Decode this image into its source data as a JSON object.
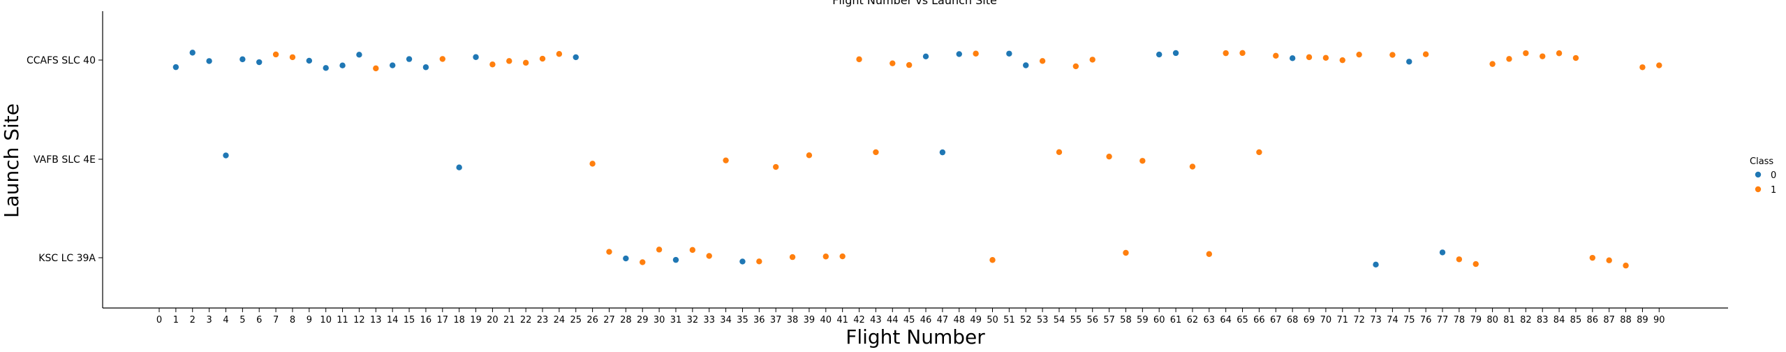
{
  "chart_data": {
    "type": "scatter",
    "title": "Flight Number vs Launch Site",
    "xlabel": "Flight Number",
    "ylabel": "Launch Site",
    "x_categories": [
      "0",
      "1",
      "2",
      "3",
      "4",
      "5",
      "6",
      "7",
      "8",
      "9",
      "10",
      "11",
      "12",
      "13",
      "14",
      "15",
      "16",
      "17",
      "18",
      "19",
      "20",
      "21",
      "22",
      "23",
      "24",
      "25",
      "26",
      "27",
      "28",
      "29",
      "30",
      "31",
      "32",
      "33",
      "34",
      "35",
      "36",
      "37",
      "38",
      "39",
      "40",
      "41",
      "42",
      "43",
      "44",
      "45",
      "46",
      "47",
      "48",
      "49",
      "50",
      "51",
      "52",
      "53",
      "54",
      "55",
      "56",
      "57",
      "58",
      "59",
      "60",
      "61",
      "62",
      "63",
      "64",
      "65",
      "66",
      "67",
      "68",
      "69",
      "70",
      "71",
      "72",
      "73",
      "74",
      "75",
      "76",
      "77",
      "78",
      "79",
      "80",
      "81",
      "82",
      "83",
      "84",
      "85",
      "86",
      "87",
      "88",
      "89",
      "90"
    ],
    "y_categories": [
      "CCAFS SLC 40",
      "VAFB SLC 4E",
      "KSC LC 39A"
    ],
    "grid": false,
    "legend": {
      "title": "Class",
      "placement": "right",
      "entries": [
        {
          "label": "0",
          "color": "#1f77b4"
        },
        {
          "label": "1",
          "color": "#ff7f0e"
        }
      ]
    },
    "points": [
      {
        "x": 1,
        "site": "CCAFS SLC 40",
        "class": 0
      },
      {
        "x": 2,
        "site": "CCAFS SLC 40",
        "class": 0
      },
      {
        "x": 3,
        "site": "CCAFS SLC 40",
        "class": 0
      },
      {
        "x": 4,
        "site": "VAFB SLC 4E",
        "class": 0
      },
      {
        "x": 5,
        "site": "CCAFS SLC 40",
        "class": 0
      },
      {
        "x": 6,
        "site": "CCAFS SLC 40",
        "class": 0
      },
      {
        "x": 7,
        "site": "CCAFS SLC 40",
        "class": 1
      },
      {
        "x": 8,
        "site": "CCAFS SLC 40",
        "class": 1
      },
      {
        "x": 9,
        "site": "CCAFS SLC 40",
        "class": 0
      },
      {
        "x": 10,
        "site": "CCAFS SLC 40",
        "class": 0
      },
      {
        "x": 11,
        "site": "CCAFS SLC 40",
        "class": 0
      },
      {
        "x": 12,
        "site": "CCAFS SLC 40",
        "class": 0
      },
      {
        "x": 13,
        "site": "CCAFS SLC 40",
        "class": 1
      },
      {
        "x": 14,
        "site": "CCAFS SLC 40",
        "class": 0
      },
      {
        "x": 15,
        "site": "CCAFS SLC 40",
        "class": 0
      },
      {
        "x": 16,
        "site": "CCAFS SLC 40",
        "class": 0
      },
      {
        "x": 17,
        "site": "CCAFS SLC 40",
        "class": 1
      },
      {
        "x": 18,
        "site": "VAFB SLC 4E",
        "class": 0
      },
      {
        "x": 19,
        "site": "CCAFS SLC 40",
        "class": 0
      },
      {
        "x": 20,
        "site": "CCAFS SLC 40",
        "class": 1
      },
      {
        "x": 21,
        "site": "CCAFS SLC 40",
        "class": 1
      },
      {
        "x": 22,
        "site": "CCAFS SLC 40",
        "class": 1
      },
      {
        "x": 23,
        "site": "CCAFS SLC 40",
        "class": 1
      },
      {
        "x": 24,
        "site": "CCAFS SLC 40",
        "class": 1
      },
      {
        "x": 25,
        "site": "CCAFS SLC 40",
        "class": 0
      },
      {
        "x": 26,
        "site": "VAFB SLC 4E",
        "class": 1
      },
      {
        "x": 27,
        "site": "KSC LC 39A",
        "class": 1
      },
      {
        "x": 28,
        "site": "KSC LC 39A",
        "class": 0
      },
      {
        "x": 29,
        "site": "KSC LC 39A",
        "class": 1
      },
      {
        "x": 30,
        "site": "KSC LC 39A",
        "class": 1
      },
      {
        "x": 31,
        "site": "KSC LC 39A",
        "class": 0
      },
      {
        "x": 32,
        "site": "KSC LC 39A",
        "class": 1
      },
      {
        "x": 33,
        "site": "KSC LC 39A",
        "class": 1
      },
      {
        "x": 34,
        "site": "VAFB SLC 4E",
        "class": 1
      },
      {
        "x": 35,
        "site": "KSC LC 39A",
        "class": 0
      },
      {
        "x": 36,
        "site": "KSC LC 39A",
        "class": 1
      },
      {
        "x": 37,
        "site": "VAFB SLC 4E",
        "class": 1
      },
      {
        "x": 38,
        "site": "KSC LC 39A",
        "class": 1
      },
      {
        "x": 39,
        "site": "VAFB SLC 4E",
        "class": 1
      },
      {
        "x": 40,
        "site": "KSC LC 39A",
        "class": 1
      },
      {
        "x": 41,
        "site": "KSC LC 39A",
        "class": 1
      },
      {
        "x": 42,
        "site": "CCAFS SLC 40",
        "class": 1
      },
      {
        "x": 43,
        "site": "VAFB SLC 4E",
        "class": 1
      },
      {
        "x": 44,
        "site": "CCAFS SLC 40",
        "class": 1
      },
      {
        "x": 45,
        "site": "CCAFS SLC 40",
        "class": 1
      },
      {
        "x": 46,
        "site": "CCAFS SLC 40",
        "class": 0
      },
      {
        "x": 47,
        "site": "VAFB SLC 4E",
        "class": 0
      },
      {
        "x": 48,
        "site": "CCAFS SLC 40",
        "class": 0
      },
      {
        "x": 49,
        "site": "CCAFS SLC 40",
        "class": 1
      },
      {
        "x": 50,
        "site": "KSC LC 39A",
        "class": 1
      },
      {
        "x": 51,
        "site": "CCAFS SLC 40",
        "class": 0
      },
      {
        "x": 52,
        "site": "CCAFS SLC 40",
        "class": 0
      },
      {
        "x": 53,
        "site": "CCAFS SLC 40",
        "class": 1
      },
      {
        "x": 54,
        "site": "VAFB SLC 4E",
        "class": 1
      },
      {
        "x": 55,
        "site": "CCAFS SLC 40",
        "class": 1
      },
      {
        "x": 56,
        "site": "CCAFS SLC 40",
        "class": 1
      },
      {
        "x": 57,
        "site": "VAFB SLC 4E",
        "class": 1
      },
      {
        "x": 58,
        "site": "KSC LC 39A",
        "class": 1
      },
      {
        "x": 59,
        "site": "VAFB SLC 4E",
        "class": 1
      },
      {
        "x": 60,
        "site": "CCAFS SLC 40",
        "class": 0
      },
      {
        "x": 61,
        "site": "CCAFS SLC 40",
        "class": 0
      },
      {
        "x": 62,
        "site": "VAFB SLC 4E",
        "class": 1
      },
      {
        "x": 63,
        "site": "KSC LC 39A",
        "class": 1
      },
      {
        "x": 64,
        "site": "CCAFS SLC 40",
        "class": 1
      },
      {
        "x": 65,
        "site": "CCAFS SLC 40",
        "class": 1
      },
      {
        "x": 66,
        "site": "VAFB SLC 4E",
        "class": 1
      },
      {
        "x": 67,
        "site": "CCAFS SLC 40",
        "class": 1
      },
      {
        "x": 68,
        "site": "CCAFS SLC 40",
        "class": 0
      },
      {
        "x": 69,
        "site": "CCAFS SLC 40",
        "class": 1
      },
      {
        "x": 70,
        "site": "CCAFS SLC 40",
        "class": 1
      },
      {
        "x": 71,
        "site": "CCAFS SLC 40",
        "class": 1
      },
      {
        "x": 72,
        "site": "CCAFS SLC 40",
        "class": 1
      },
      {
        "x": 73,
        "site": "KSC LC 39A",
        "class": 0
      },
      {
        "x": 74,
        "site": "CCAFS SLC 40",
        "class": 1
      },
      {
        "x": 75,
        "site": "CCAFS SLC 40",
        "class": 0
      },
      {
        "x": 76,
        "site": "CCAFS SLC 40",
        "class": 1
      },
      {
        "x": 77,
        "site": "KSC LC 39A",
        "class": 0
      },
      {
        "x": 78,
        "site": "KSC LC 39A",
        "class": 1
      },
      {
        "x": 79,
        "site": "KSC LC 39A",
        "class": 1
      },
      {
        "x": 80,
        "site": "CCAFS SLC 40",
        "class": 1
      },
      {
        "x": 81,
        "site": "CCAFS SLC 40",
        "class": 1
      },
      {
        "x": 82,
        "site": "CCAFS SLC 40",
        "class": 1
      },
      {
        "x": 83,
        "site": "CCAFS SLC 40",
        "class": 1
      },
      {
        "x": 84,
        "site": "CCAFS SLC 40",
        "class": 1
      },
      {
        "x": 85,
        "site": "CCAFS SLC 40",
        "class": 1
      },
      {
        "x": 86,
        "site": "KSC LC 39A",
        "class": 1
      },
      {
        "x": 87,
        "site": "KSC LC 39A",
        "class": 1
      },
      {
        "x": 88,
        "site": "KSC LC 39A",
        "class": 1
      },
      {
        "x": 89,
        "site": "CCAFS SLC 40",
        "class": 1
      },
      {
        "x": 90,
        "site": "CCAFS SLC 40",
        "class": 1
      }
    ]
  }
}
